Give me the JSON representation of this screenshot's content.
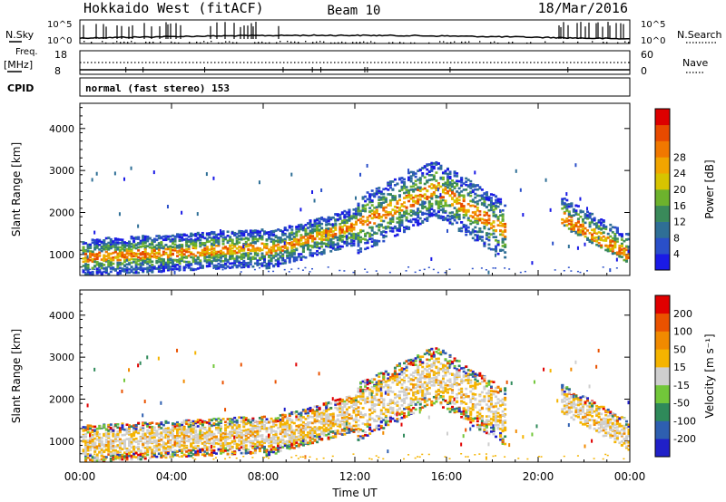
{
  "header": {
    "title": "Hokkaido West (fitACF)",
    "beam": "Beam 10",
    "date": "18/Mar/2016"
  },
  "summary_panels": {
    "nsky": {
      "label": "N.Sky",
      "ticks": [
        "10^5",
        "10^0"
      ]
    },
    "nsearch": {
      "label": "N.Search",
      "ticks": [
        "10^5",
        "10^0"
      ]
    },
    "freq": {
      "label_line1": "Freq.",
      "label_line2": "[MHz]",
      "ticks": [
        "18",
        "8"
      ]
    },
    "nave": {
      "label": "Nave",
      "ticks": [
        "60",
        "0"
      ]
    },
    "cpid": {
      "label": "CPID",
      "mode": "normal (fast stereo) 153"
    }
  },
  "chart_data": [
    {
      "type": "heatmap",
      "parameter": "Power",
      "ylabel": "Slant Range [km]",
      "yticks": [
        1000,
        2000,
        3000,
        4000
      ],
      "ylim": [
        500,
        4600
      ],
      "xlim_hours": [
        0,
        24
      ],
      "colorbar": {
        "label": "Power [dB]",
        "ticks": [
          "4",
          "8",
          "12",
          "16",
          "20",
          "24",
          "28"
        ],
        "colors": [
          "#1a1ae6",
          "#2a4fc9",
          "#2f6f96",
          "#3a8a5a",
          "#6db22d",
          "#d7c400",
          "#f1a500",
          "#f17800",
          "#e84a00",
          "#dd0000"
        ]
      }
    },
    {
      "type": "heatmap",
      "parameter": "Velocity",
      "ylabel": "Slant Range [km]",
      "yticks": [
        1000,
        2000,
        3000,
        4000
      ],
      "ylim": [
        500,
        4600
      ],
      "xlim_hours": [
        0,
        24
      ],
      "colorbar": {
        "label": "Velocity [m s⁻¹]",
        "ticks": [
          "200",
          "100",
          "50",
          "15",
          "-15",
          "-50",
          "-100",
          "-200"
        ],
        "colors": [
          "#2020c8",
          "#2e5fb0",
          "#2f8a5a",
          "#72c73a",
          "#cfcfcf",
          "#f5b400",
          "#f18a00",
          "#ea5200",
          "#e00000"
        ]
      }
    }
  ],
  "xaxis": {
    "label": "Time UT",
    "ticks": [
      "00:00",
      "04:00",
      "08:00",
      "12:00",
      "16:00",
      "20:00",
      "00:00"
    ]
  }
}
